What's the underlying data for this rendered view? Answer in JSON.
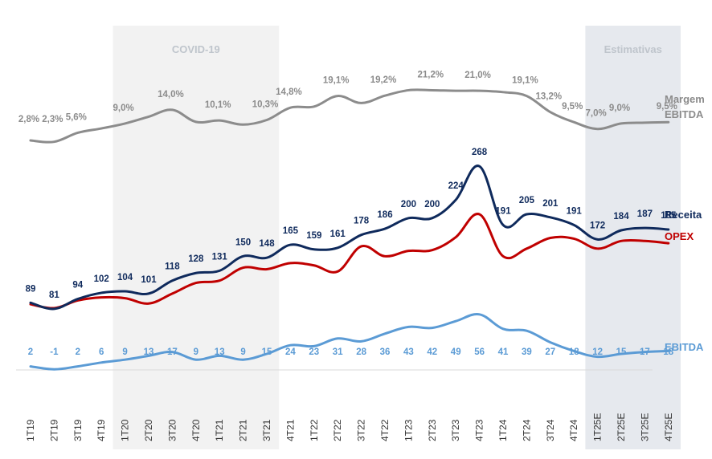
{
  "chart_data": {
    "type": "line",
    "categories": [
      "1T19",
      "2T19",
      "3T19",
      "4T19",
      "1T20",
      "2T20",
      "3T20",
      "4T20",
      "1T21",
      "2T21",
      "3T21",
      "4T21",
      "1T22",
      "2T22",
      "3T22",
      "4T22",
      "1T23",
      "2T23",
      "3T23",
      "4T23",
      "1T24",
      "2T24",
      "3T24",
      "4T24",
      "1T25E",
      "2T25E",
      "3T25E",
      "4T25E"
    ],
    "series": [
      {
        "name": "Margem EBITDA",
        "key": "margem",
        "labels": [
          "2,8%",
          "2,3%",
          "5,6%",
          "",
          "9,0%",
          "",
          "14,0%",
          "",
          "10,1%",
          "",
          "10,3%",
          "14,8%",
          "",
          "19,1%",
          "",
          "19,2%",
          "",
          "21,2%",
          "",
          "21,0%",
          "",
          "19,1%",
          "13,2%",
          "9,5%",
          "7,0%",
          "9,0%",
          "",
          "9,5%"
        ],
        "values": [
          2.8,
          2.3,
          5.6,
          7.2,
          9.0,
          11.5,
          14.0,
          9.6,
          10.1,
          8.6,
          10.3,
          14.8,
          15.2,
          19.1,
          16.5,
          19.2,
          21.2,
          21.2,
          21.0,
          21.0,
          20.5,
          19.1,
          13.2,
          9.5,
          7.0,
          9.0,
          9.3,
          9.5
        ]
      },
      {
        "name": "Receita",
        "key": "receita",
        "values": [
          89,
          81,
          94,
          102,
          104,
          101,
          118,
          128,
          131,
          150,
          148,
          165,
          159,
          161,
          178,
          186,
          200,
          200,
          224,
          268,
          191,
          205,
          201,
          191,
          172,
          184,
          187,
          185
        ]
      },
      {
        "name": "OPEX",
        "key": "opex",
        "values": [
          87,
          82,
          92,
          96,
          95,
          88,
          101,
          115,
          118,
          135,
          133,
          141,
          138,
          130,
          163,
          150,
          157,
          158,
          175,
          205,
          150,
          160,
          174,
          173,
          160,
          170,
          170,
          167
        ]
      },
      {
        "name": "EBITDA",
        "key": "ebitda",
        "values": [
          2,
          -1,
          2,
          6,
          9,
          13,
          17,
          9,
          13,
          9,
          15,
          24,
          23,
          31,
          28,
          36,
          43,
          42,
          49,
          56,
          41,
          39,
          27,
          18,
          12,
          15,
          17,
          18
        ]
      }
    ],
    "bands": [
      {
        "label": "COVID-19",
        "from": "1T20",
        "to": "3T21"
      },
      {
        "label": "Estimativas",
        "from": "1T25E",
        "to": "4T25E"
      }
    ],
    "legend_placement": "right",
    "colors": {
      "margem": "#8c8c8c",
      "receita": "#0f2a5c",
      "opex": "#c00000",
      "ebitda": "#5b9bd5",
      "covid_band": "#f2f2f2",
      "estimativas_band": "#e6e9ee",
      "band_text": "#bfc5cc"
    }
  }
}
